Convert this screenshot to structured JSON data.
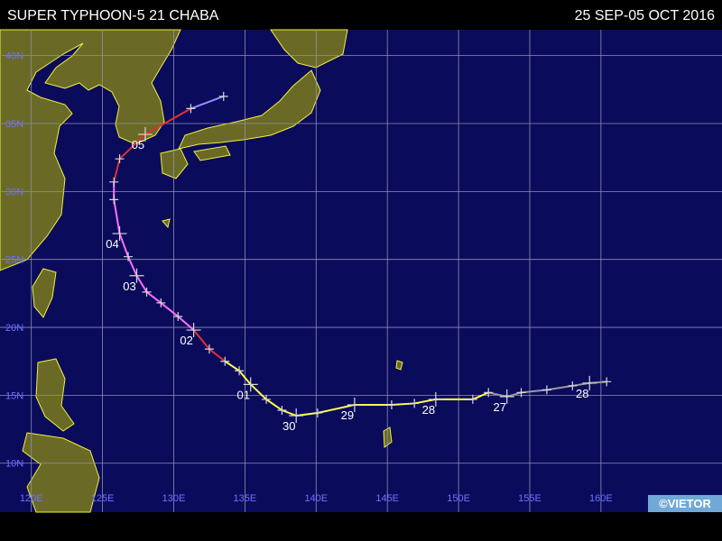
{
  "header": {
    "title": "SUPER TYPHOON-5 21 CHABA",
    "dates": "25 SEP-05 OCT 2016"
  },
  "map": {
    "lon_range": [
      117.8,
      168.5
    ],
    "lat_range": [
      41.9,
      6.4
    ],
    "lon_ticks": [
      {
        "value": 120,
        "label": "120E"
      },
      {
        "value": 125,
        "label": "125E"
      },
      {
        "value": 130,
        "label": "130E"
      },
      {
        "value": 135,
        "label": "135E"
      },
      {
        "value": 140,
        "label": "140E"
      },
      {
        "value": 145,
        "label": "145E"
      },
      {
        "value": 150,
        "label": "150E"
      },
      {
        "value": 155,
        "label": "155E"
      },
      {
        "value": 160,
        "label": "160E"
      }
    ],
    "lat_ticks": [
      {
        "value": 40,
        "label": "40N"
      },
      {
        "value": 35,
        "label": "35N"
      },
      {
        "value": 30,
        "label": "30N"
      },
      {
        "value": 25,
        "label": "25N"
      },
      {
        "value": 20,
        "label": "20N"
      },
      {
        "value": 15,
        "label": "15N"
      },
      {
        "value": 10,
        "label": "10N"
      }
    ]
  },
  "track": {
    "points": [
      {
        "lon": 160.4,
        "lat": 16.0,
        "color": "#9a9a9a"
      },
      {
        "lon": 159.2,
        "lat": 15.9,
        "color": "#9a9a9a",
        "label": "28"
      },
      {
        "lon": 158.0,
        "lat": 15.7,
        "color": "#9a9a9a"
      },
      {
        "lon": 156.2,
        "lat": 15.4,
        "color": "#9a9a9a"
      },
      {
        "lon": 154.4,
        "lat": 15.2,
        "color": "#9a9a9a"
      },
      {
        "lon": 153.4,
        "lat": 14.9,
        "color": "#9a9a9a",
        "label": "27"
      },
      {
        "lon": 152.1,
        "lat": 15.2,
        "color": "#9a9a9a"
      },
      {
        "lon": 151.0,
        "lat": 14.7,
        "color": "#ffff50"
      },
      {
        "lon": 148.4,
        "lat": 14.7,
        "color": "#ffff50",
        "label": "28"
      },
      {
        "lon": 146.9,
        "lat": 14.4,
        "color": "#ffff50"
      },
      {
        "lon": 145.3,
        "lat": 14.3,
        "color": "#ffff50"
      },
      {
        "lon": 142.7,
        "lat": 14.3,
        "color": "#ffff50",
        "label": "29"
      },
      {
        "lon": 140.1,
        "lat": 13.7,
        "color": "#ffff50"
      },
      {
        "lon": 138.6,
        "lat": 13.5,
        "color": "#ffff50",
        "label": "30"
      },
      {
        "lon": 137.6,
        "lat": 13.9,
        "color": "#ffff50"
      },
      {
        "lon": 136.5,
        "lat": 14.7,
        "color": "#ffff50"
      },
      {
        "lon": 135.4,
        "lat": 15.8,
        "color": "#ffff50",
        "label": "01"
      },
      {
        "lon": 134.6,
        "lat": 16.8,
        "color": "#ffff50"
      },
      {
        "lon": 133.6,
        "lat": 17.5,
        "color": "#ffff50"
      },
      {
        "lon": 132.5,
        "lat": 18.4,
        "color": "#e03030"
      },
      {
        "lon": 131.4,
        "lat": 19.8,
        "color": "#e03030",
        "label": "02"
      },
      {
        "lon": 130.3,
        "lat": 20.8,
        "color": "#ff70ff"
      },
      {
        "lon": 129.1,
        "lat": 21.8,
        "color": "#ff70ff"
      },
      {
        "lon": 128.1,
        "lat": 22.6,
        "color": "#ff70ff"
      },
      {
        "lon": 127.4,
        "lat": 23.8,
        "color": "#ff70ff",
        "label": "03"
      },
      {
        "lon": 126.8,
        "lat": 25.2,
        "color": "#ff70ff"
      },
      {
        "lon": 126.2,
        "lat": 26.9,
        "color": "#ff70ff",
        "label": "04"
      },
      {
        "lon": 125.8,
        "lat": 29.4,
        "color": "#ff70ff"
      },
      {
        "lon": 125.8,
        "lat": 30.7,
        "color": "#ff70ff"
      },
      {
        "lon": 126.2,
        "lat": 32.4,
        "color": "#e03030"
      },
      {
        "lon": 128.0,
        "lat": 34.2,
        "color": "#e03030",
        "label": "05"
      },
      {
        "lon": 131.2,
        "lat": 36.1,
        "color": "#e03030"
      },
      {
        "lon": 133.5,
        "lat": 37.0,
        "color": "#9090ff"
      }
    ]
  },
  "credit": "©VIETOR"
}
